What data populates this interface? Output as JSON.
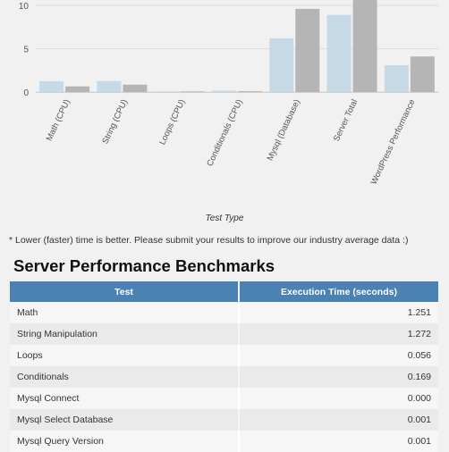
{
  "chart_data": {
    "type": "bar",
    "categories": [
      "Math (CPU)",
      "String (CPU)",
      "Loops (CPU)",
      "Conditionals (CPU)",
      "Mysql (Database)",
      "Server Total",
      "WordPress Performance"
    ],
    "series": [
      {
        "values": [
          1.25,
          1.27,
          0.06,
          0.17,
          6.2,
          8.9,
          3.1
        ],
        "color": "#c5d9e6"
      },
      {
        "values": [
          0.65,
          0.85,
          0.07,
          0.09,
          9.6,
          11.0,
          4.1
        ],
        "color": "#b5b5b5"
      }
    ],
    "yticks": [
      0,
      5,
      10
    ],
    "ylim": [
      0,
      11.2
    ],
    "xlabel": "Test Type",
    "grid": true
  },
  "footnote": "* Lower (faster) time is better. Please submit your results to improve our industry average data :)",
  "section_title": "Server Performance Benchmarks",
  "table": {
    "headers": [
      "Test",
      "Execution Time (seconds)"
    ],
    "rows": [
      [
        "Math",
        "1.251"
      ],
      [
        "String Manipulation",
        "1.272"
      ],
      [
        "Loops",
        "0.056"
      ],
      [
        "Conditionals",
        "0.169"
      ],
      [
        "Mysql Connect",
        "0.000"
      ],
      [
        "Mysql Select Database",
        "0.001"
      ],
      [
        "Mysql Query Version",
        "0.001"
      ]
    ]
  }
}
